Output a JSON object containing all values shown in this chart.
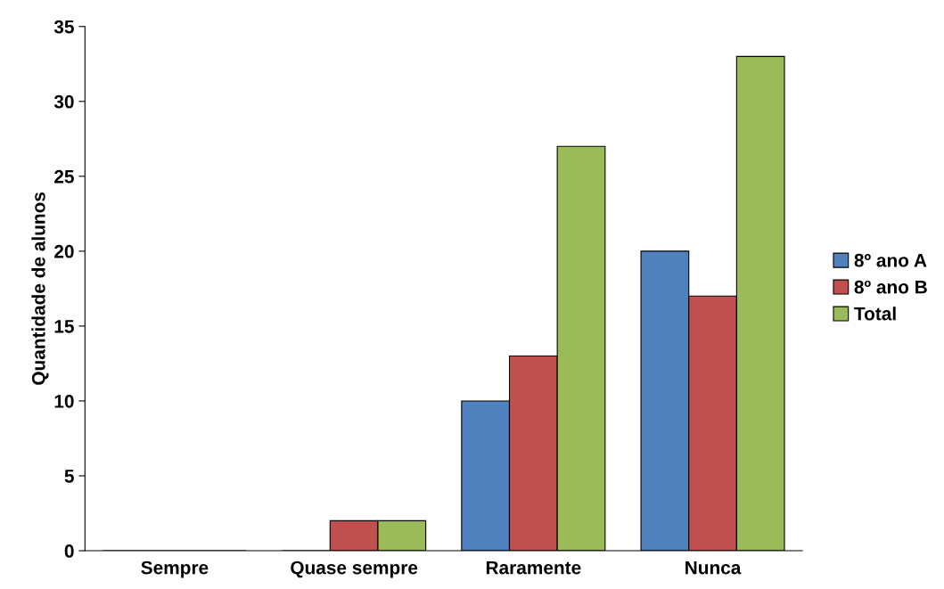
{
  "chart_data": {
    "type": "bar",
    "ylabel": "Quantidade de alunos",
    "categories": [
      "Sempre",
      "Quase sempre",
      "Raramente",
      "Nunca"
    ],
    "series": [
      {
        "name": "8º ano A",
        "color": "#4f81bd",
        "values": [
          0,
          0,
          10,
          20
        ]
      },
      {
        "name": "8º ano B",
        "color": "#c0504d",
        "values": [
          0,
          2,
          13,
          17
        ]
      },
      {
        "name": "Total",
        "color": "#9bbb59",
        "values": [
          0,
          2,
          27,
          33
        ]
      }
    ],
    "ylim": [
      0,
      35
    ],
    "yticks": [
      0,
      5,
      10,
      15,
      20,
      25,
      30,
      35
    ],
    "grid": false,
    "legend": "right"
  }
}
